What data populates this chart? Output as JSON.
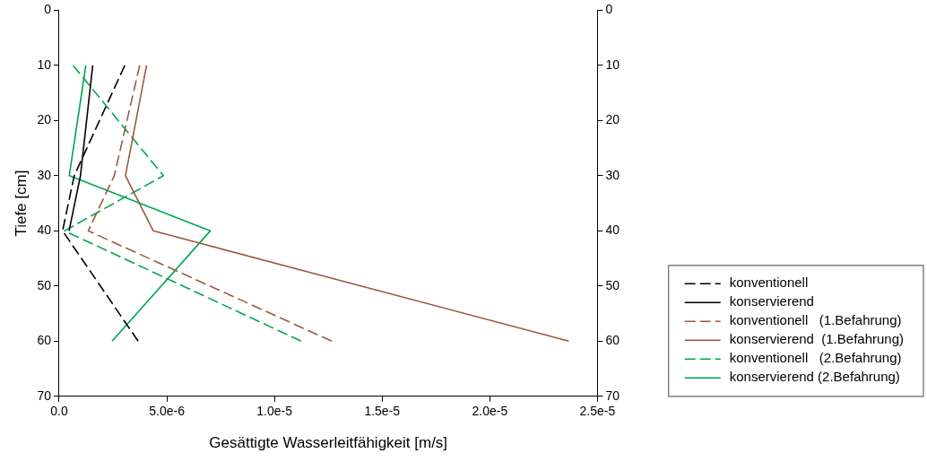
{
  "chart_data": {
    "type": "line",
    "xlabel": "Gesättigte Wasserleitfähigkeit [m/s]",
    "ylabel": "Tiefe [cm]",
    "xlim": [
      0,
      2.5e-05
    ],
    "xticks": [
      {
        "value": 0,
        "label": "0.0"
      },
      {
        "value": 5e-06,
        "label": "5.0e-6"
      },
      {
        "value": 1e-05,
        "label": "1.0e-5"
      },
      {
        "value": 1.5e-05,
        "label": "1.5e-5"
      },
      {
        "value": 2e-05,
        "label": "2.0e-5"
      },
      {
        "value": 2.5e-05,
        "label": "2.5e-5"
      }
    ],
    "ylim": [
      70,
      0
    ],
    "yticks": [
      0,
      10,
      20,
      30,
      40,
      50,
      60,
      70
    ],
    "y2lim": [
      70,
      0
    ],
    "y2ticks": [
      0,
      10,
      20,
      30,
      40,
      50,
      60,
      70
    ],
    "legend": "right",
    "grid": false,
    "marker": "none",
    "series": [
      {
        "name": "konventionell",
        "color": "#000000",
        "line_style": "dashed",
        "x": [
          3.05e-06,
          7e-07,
          1.6e-07,
          3.67e-06
        ],
        "values": [
          10,
          30,
          40,
          60
        ]
      },
      {
        "name": "konservierend",
        "color": "#000000",
        "line_style": "solid",
        "x": [
          1.56e-06,
          9.9e-07,
          4.6e-07
        ],
        "values": [
          10,
          30,
          40
        ]
      },
      {
        "name": "konventionell   (1.Befahrung)",
        "color": "#9a5a40",
        "line_style": "dashed",
        "x": [
          3.74e-06,
          2.56e-06,
          1.35e-06,
          1.266e-05
        ],
        "values": [
          10,
          30,
          40,
          60
        ]
      },
      {
        "name": "konservierend  (1.Befahrung)",
        "color": "#9a5a40",
        "line_style": "solid",
        "x": [
          4.06e-06,
          3.08e-06,
          4.37e-06,
          2.367e-05
        ],
        "values": [
          10,
          30,
          40,
          60
        ]
      },
      {
        "name": "konventionell   (2.Befahrung)",
        "color": "#00a650",
        "line_style": "dashed",
        "x": [
          6.5e-07,
          4.84e-06,
          2.5e-07,
          1.124e-05
        ],
        "values": [
          10,
          30,
          40,
          60
        ]
      },
      {
        "name": "konservierend (2.Befahrung)",
        "color": "#00a650",
        "line_style": "solid",
        "x": [
          1.24e-06,
          4.7e-07,
          7.02e-06,
          2.46e-06
        ],
        "values": [
          10,
          30,
          40,
          60
        ]
      }
    ]
  }
}
